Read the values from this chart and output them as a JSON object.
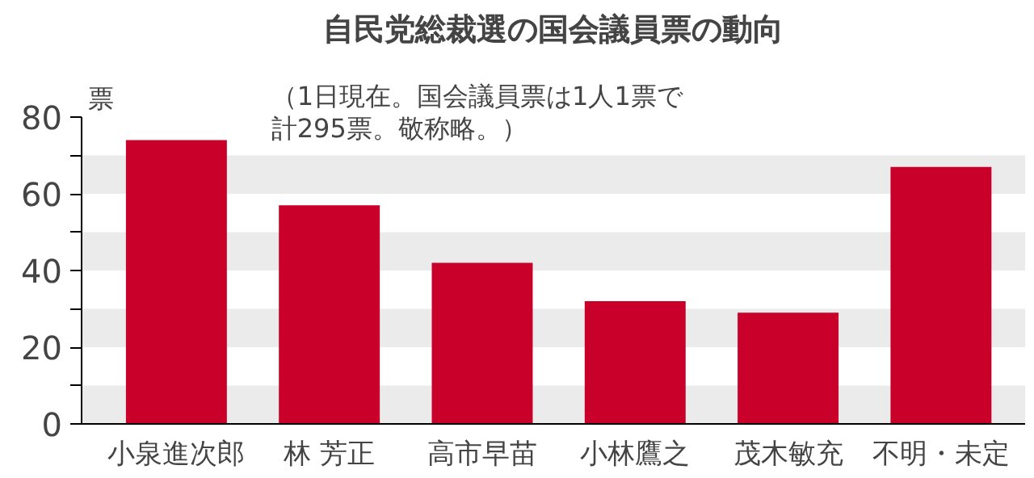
{
  "chart_data": {
    "type": "bar",
    "title": "自民党総裁選の国会議員票の動向",
    "ylabel": "票",
    "annotations": [
      "（1日現在。国会議員票は1人1票で",
      "計295票。敬称略。）"
    ],
    "categories": [
      "小泉進次郎",
      "林 芳正",
      "高市早苗",
      "小林鷹之",
      "茂木敏充",
      "不明・未定"
    ],
    "values": [
      74,
      57,
      42,
      32,
      29,
      67
    ],
    "color": "#c8002a",
    "ylim": [
      0,
      80
    ],
    "yticks": [
      0,
      {
        "value": 10,
        "label": null
      },
      20,
      {
        "value": 30,
        "label": null
      },
      40,
      {
        "value": 50,
        "label": null
      },
      60,
      {
        "value": 70,
        "label": null
      },
      80
    ],
    "bands": [
      {
        "axis": "y",
        "from": 0,
        "to": 10,
        "color": "#ebebeb"
      },
      {
        "axis": "y",
        "from": 20,
        "to": 30,
        "color": "#ebebeb"
      },
      {
        "axis": "y",
        "from": 40,
        "to": 50,
        "color": "#ebebeb"
      },
      {
        "axis": "y",
        "from": 60,
        "to": 70,
        "color": "#ebebeb"
      }
    ],
    "grid": false
  }
}
